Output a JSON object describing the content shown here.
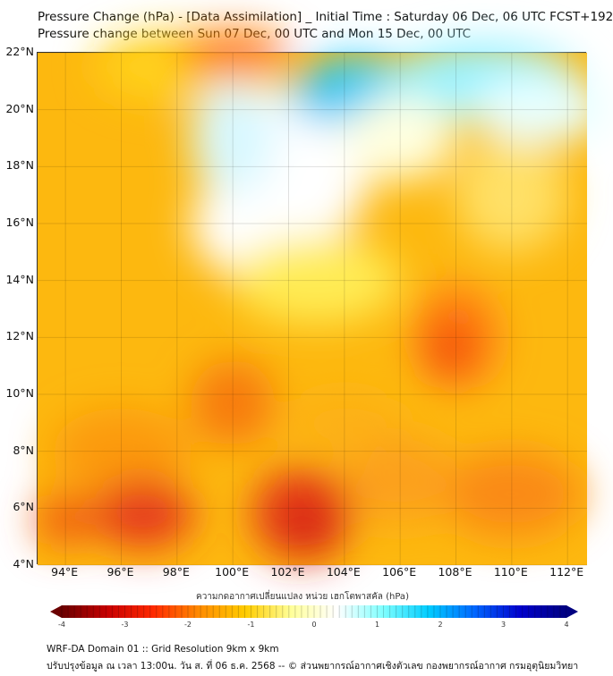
{
  "title": {
    "line1": "Pressure Change (hPa) - [Data Assimilation] _ Initial Time : Saturday 06 Dec, 06 UTC FCST+192",
    "line2": "Pressure change between Sun 07 Dec, 00 UTC and Mon 15 Dec, 00 UTC"
  },
  "map": {
    "lat_labels": [
      "22°N",
      "20°N",
      "18°N",
      "16°N",
      "14°N",
      "12°N",
      "10°N",
      "8°N",
      "6°N",
      "4°N"
    ],
    "lat_values": [
      22,
      20,
      18,
      16,
      14,
      12,
      10,
      8,
      6,
      4
    ],
    "lon_labels": [
      "94°E",
      "96°E",
      "98°E",
      "100°E",
      "102°E",
      "104°E",
      "106°E",
      "108°E",
      "110°E",
      "112°E"
    ],
    "lon_values": [
      94,
      96,
      98,
      100,
      102,
      104,
      106,
      108,
      110,
      112
    ],
    "extent": {
      "lon_min": 93.0,
      "lon_max": 112.7,
      "lat_min": 4.0,
      "lat_max": 22.0
    }
  },
  "colorbar": {
    "label": "ความกดอากาศเปลี่ยนแปลง หน่วย เฮกโตพาสคัล (hPa)",
    "ticks": [
      "-4",
      "-3",
      "-2",
      "-1",
      "0",
      "1",
      "2",
      "3",
      "4"
    ],
    "min": -4,
    "max": 4,
    "colors": [
      "#6b0000",
      "#c80000",
      "#ff2a00",
      "#ff8c00",
      "#ffcc00",
      "#ffff99",
      "#ffffff",
      "#80ffff",
      "#00ccff",
      "#0066ff",
      "#0000cc",
      "#000080"
    ]
  },
  "footer": {
    "line1": "WRF-DA Domain 01 :: Grid Resolution 9km x 9km",
    "line2": "ปรับปรุงข้อมูล ณ เวลา 13:00น. วัน ส. ที่ 06 ธ.ค. 2568 -- © ส่วนพยากรณ์อากาศเชิงตัวเลข กองพยากรณ์อากาศ กรมอุตุนิยมวิทยา"
  }
}
